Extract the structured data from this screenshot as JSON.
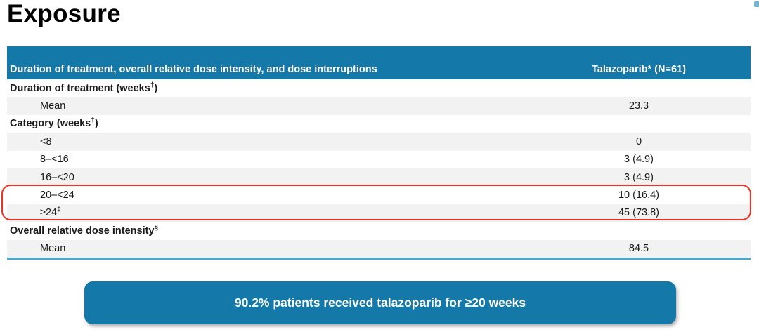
{
  "title": "Exposure",
  "colors": {
    "teal": "#1478a8",
    "row_alt_gray": "#f2f2f2",
    "table_bottom_line": "#4fa6c9",
    "highlight_red": "#ee3123",
    "header_text": "#ffffff",
    "body_text": "#1a1a1a"
  },
  "table": {
    "header": {
      "label": "Duration of treatment, overall relative dose intensity, and dose interruptions",
      "value": "Talazoparib* (N=61)"
    },
    "rows": [
      {
        "pre": "Duration of treatment (weeks",
        "sup": "†",
        "post": ")",
        "value": ""
      },
      {
        "pre": "Mean",
        "value": "23.3"
      },
      {
        "pre": "Category (weeks",
        "sup": "†",
        "post": ")",
        "value": ""
      },
      {
        "pre": "<8",
        "value": "0"
      },
      {
        "pre": "8–<16",
        "value": "3 (4.9)"
      },
      {
        "pre": "16–<20",
        "value": "3 (4.9)"
      },
      {
        "pre": "20–<24",
        "value": "10 (16.4)"
      },
      {
        "pre": "≥24",
        "sup": "‡",
        "post": "",
        "value": "45 (73.8)"
      },
      {
        "pre": "Overall relative dose intensity",
        "sup": "§",
        "post": "",
        "value": ""
      },
      {
        "pre": "Mean",
        "value": "84.5"
      }
    ]
  },
  "highlight": {
    "rows_highlighted": [
      "20–<24",
      "≥24‡"
    ]
  },
  "banner": {
    "text": "90.2% patients received talazoparib for ≥20 weeks"
  }
}
